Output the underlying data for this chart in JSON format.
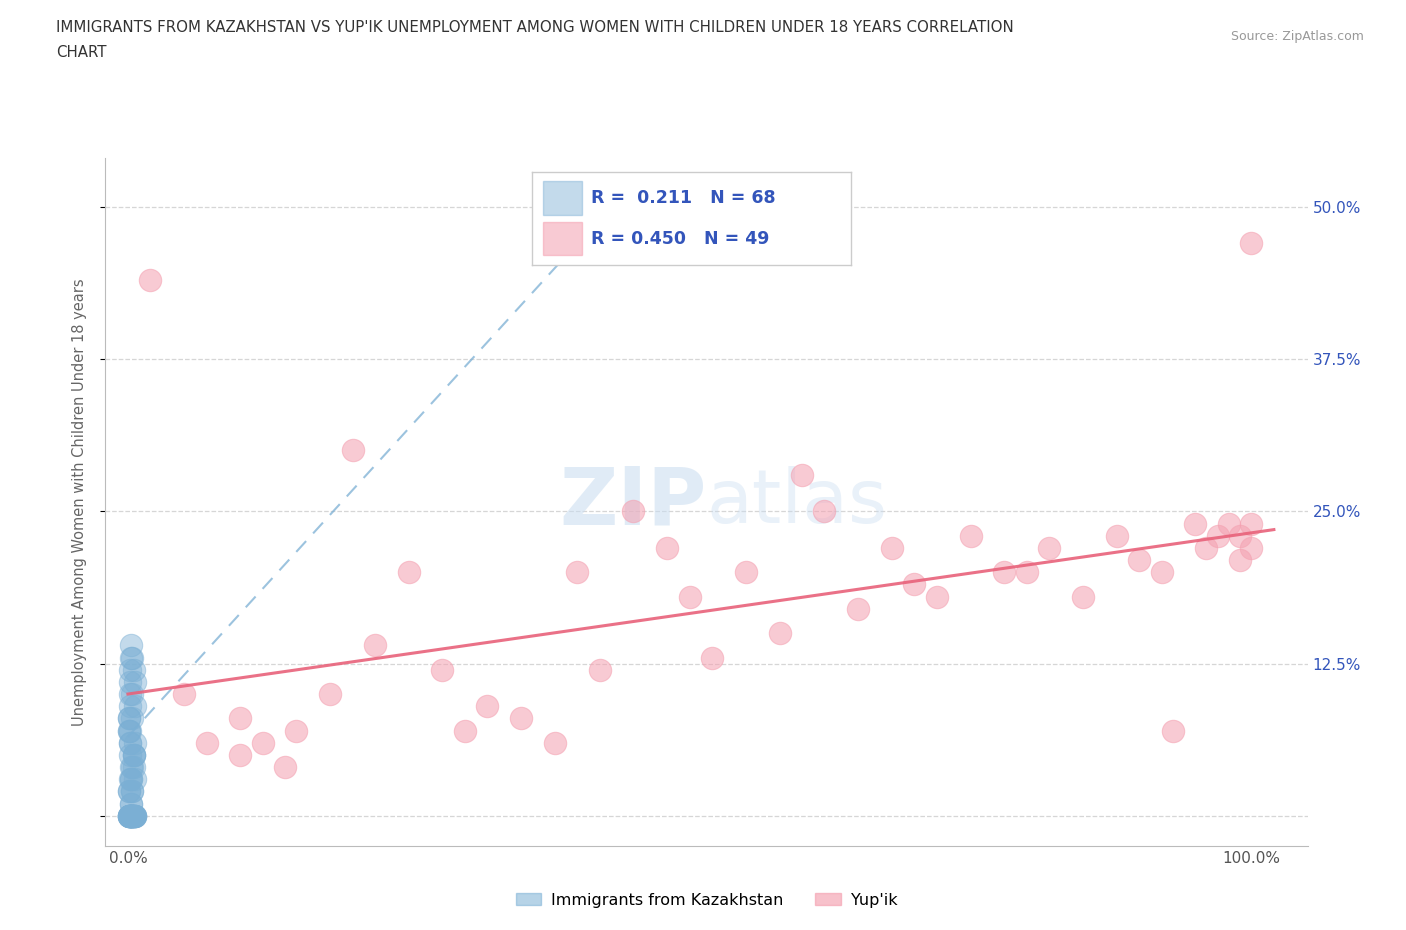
{
  "title_line1": "IMMIGRANTS FROM KAZAKHSTAN VS YUP'IK UNEMPLOYMENT AMONG WOMEN WITH CHILDREN UNDER 18 YEARS CORRELATION",
  "title_line2": "CHART",
  "source": "Source: ZipAtlas.com",
  "ylabel": "Unemployment Among Women with Children Under 18 years",
  "blue_R": 0.211,
  "blue_N": 68,
  "pink_R": 0.45,
  "pink_N": 49,
  "blue_color": "#7BAFD4",
  "pink_color": "#F4A0B0",
  "blue_trend_color": "#7BAFD4",
  "pink_trend_color": "#E8627A",
  "xlim": [
    -2.0,
    105.0
  ],
  "ylim": [
    -2.5,
    54.0
  ],
  "y_ticks": [
    0,
    12.5,
    25.0,
    37.5,
    50.0
  ],
  "x_ticks": [
    0,
    100
  ],
  "watermark_color": "#C8DCF0",
  "background_color": "#ffffff",
  "grid_color": "#CCCCCC",
  "title_color": "#333333",
  "legend_color": "#3355BB",
  "blue_scatter_x": [
    0.3,
    0.2,
    0.4,
    0.1,
    0.5,
    0.3,
    0.2,
    0.4,
    0.1,
    0.6,
    0.3,
    0.2,
    0.5,
    0.4,
    0.1,
    0.3,
    0.2,
    0.6,
    0.4,
    0.5,
    0.1,
    0.3,
    0.2,
    0.4,
    0.6,
    0.1,
    0.3,
    0.5,
    0.2,
    0.4,
    0.6,
    0.1,
    0.3,
    0.2,
    0.5,
    0.4,
    0.1,
    0.3,
    0.2,
    0.6,
    0.4,
    0.5,
    0.1,
    0.3,
    0.2,
    0.4,
    0.6,
    0.1,
    0.3,
    0.5,
    0.2,
    0.4,
    0.6,
    0.1,
    0.3,
    0.2,
    0.5,
    0.4,
    0.1,
    0.3,
    0.2,
    0.6,
    0.4,
    0.5,
    0.1,
    0.3,
    0.2,
    0.4
  ],
  "blue_scatter_y": [
    0.0,
    0.0,
    2.0,
    0.0,
    5.0,
    3.0,
    7.0,
    10.0,
    8.0,
    6.0,
    4.0,
    12.0,
    0.0,
    0.0,
    0.0,
    1.0,
    9.0,
    11.0,
    13.0,
    0.0,
    2.0,
    3.0,
    5.0,
    0.0,
    0.0,
    7.0,
    14.0,
    4.0,
    6.0,
    8.0,
    0.0,
    0.0,
    0.0,
    10.0,
    0.0,
    0.0,
    2.0,
    1.0,
    0.0,
    3.0,
    0.0,
    5.0,
    0.0,
    0.0,
    0.0,
    0.0,
    9.0,
    7.0,
    0.0,
    12.0,
    6.0,
    4.0,
    0.0,
    0.0,
    13.0,
    11.0,
    0.0,
    0.0,
    8.0,
    0.0,
    0.0,
    0.0,
    2.0,
    5.0,
    0.0,
    0.0,
    3.0,
    0.0
  ],
  "pink_scatter_x": [
    2,
    5,
    7,
    10,
    10,
    12,
    14,
    15,
    18,
    20,
    22,
    25,
    28,
    30,
    32,
    35,
    38,
    40,
    42,
    45,
    48,
    50,
    52,
    55,
    58,
    60,
    62,
    65,
    68,
    70,
    72,
    75,
    78,
    80,
    82,
    85,
    88,
    90,
    92,
    93,
    95,
    96,
    97,
    98,
    99,
    100,
    100,
    100,
    99
  ],
  "pink_scatter_y": [
    44,
    10,
    6,
    5,
    8,
    6,
    4,
    7,
    10,
    30,
    14,
    20,
    12,
    7,
    9,
    8,
    6,
    20,
    12,
    25,
    22,
    18,
    13,
    20,
    15,
    28,
    25,
    17,
    22,
    19,
    18,
    23,
    20,
    20,
    22,
    18,
    23,
    21,
    20,
    7,
    24,
    22,
    23,
    24,
    23,
    47,
    24,
    22,
    21
  ],
  "blue_trend_x0": 0.0,
  "blue_trend_x1": 40.0,
  "blue_trend_y0": 6.5,
  "blue_trend_y1": 47.0,
  "pink_trend_x0": 0.0,
  "pink_trend_x1": 102.0,
  "pink_trend_y0": 10.0,
  "pink_trend_y1": 23.5
}
